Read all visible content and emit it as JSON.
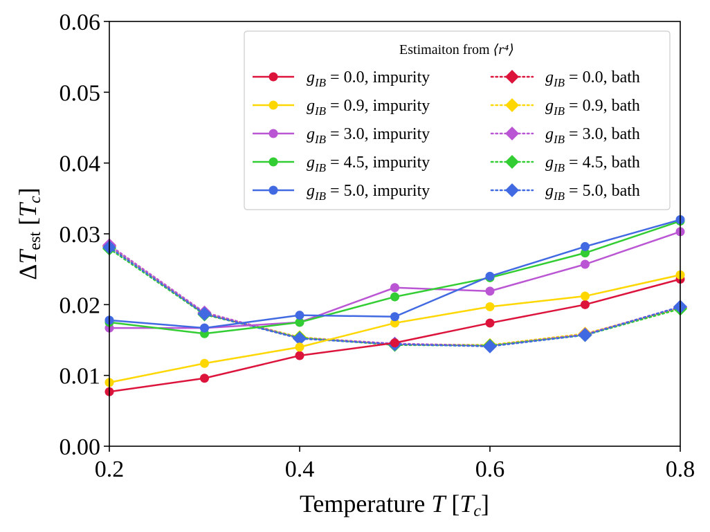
{
  "chart_data": {
    "type": "line",
    "title": "",
    "xlabel": "Temperature T [T_c]",
    "ylabel": "ΔT_est [T_c]",
    "xlim": [
      0.2,
      0.8
    ],
    "ylim": [
      0.0,
      0.06
    ],
    "xticks": [
      "0.2",
      "0.4",
      "0.6",
      "0.8"
    ],
    "yticks": [
      "0.00",
      "0.01",
      "0.02",
      "0.03",
      "0.04",
      "0.05",
      "0.06"
    ],
    "x": [
      0.2,
      0.3,
      0.4,
      0.5,
      0.6,
      0.7,
      0.8
    ],
    "legend": {
      "title_prefix": "Estimaiton from",
      "title_math": "⟨r⁴⟩",
      "location": "upper-right",
      "columns": 2
    },
    "series": [
      {
        "name": "g_IB = 0.0, impurity",
        "g": "0.0",
        "kind": "impurity",
        "color": "#dc143c",
        "style": "solid",
        "marker": "circle",
        "values": [
          0.0077,
          0.0096,
          0.0128,
          0.0146,
          0.0174,
          0.02,
          0.0236
        ]
      },
      {
        "name": "g_IB = 0.9, impurity",
        "g": "0.9",
        "kind": "impurity",
        "color": "#ffd700",
        "style": "solid",
        "marker": "circle",
        "values": [
          0.009,
          0.0117,
          0.014,
          0.0174,
          0.0197,
          0.0212,
          0.0242
        ]
      },
      {
        "name": "g_IB = 3.0, impurity",
        "g": "3.0",
        "kind": "impurity",
        "color": "#ba55d3",
        "style": "solid",
        "marker": "circle",
        "values": [
          0.0167,
          0.0167,
          0.0175,
          0.0224,
          0.0219,
          0.0257,
          0.0303
        ]
      },
      {
        "name": "g_IB = 4.5, impurity",
        "g": "4.5",
        "kind": "impurity",
        "color": "#32cd32",
        "style": "solid",
        "marker": "circle",
        "values": [
          0.0175,
          0.0159,
          0.0175,
          0.0211,
          0.0238,
          0.0273,
          0.0318
        ]
      },
      {
        "name": "g_IB = 5.0, impurity",
        "g": "5.0",
        "kind": "impurity",
        "color": "#4169e1",
        "style": "solid",
        "marker": "circle",
        "values": [
          0.0178,
          0.0167,
          0.0185,
          0.0183,
          0.024,
          0.0282,
          0.032
        ]
      },
      {
        "name": "g_IB = 0.0, bath",
        "g": "0.0",
        "kind": "bath",
        "color": "#dc143c",
        "style": "dotted",
        "marker": "diamond",
        "values": [
          0.0283,
          0.0187,
          0.0153,
          0.0144,
          0.0142,
          0.0158,
          0.0196
        ]
      },
      {
        "name": "g_IB = 0.9, bath",
        "g": "0.9",
        "kind": "bath",
        "color": "#ffd700",
        "style": "dotted",
        "marker": "diamond",
        "values": [
          0.0282,
          0.0188,
          0.0154,
          0.0144,
          0.0143,
          0.0159,
          0.0195
        ]
      },
      {
        "name": "g_IB = 3.0, bath",
        "g": "3.0",
        "kind": "bath",
        "color": "#ba55d3",
        "style": "dotted",
        "marker": "diamond",
        "values": [
          0.0284,
          0.0189,
          0.0153,
          0.0145,
          0.0142,
          0.0158,
          0.0197
        ]
      },
      {
        "name": "g_IB = 4.5, bath",
        "g": "4.5",
        "kind": "bath",
        "color": "#32cd32",
        "style": "dotted",
        "marker": "diamond",
        "values": [
          0.0279,
          0.0186,
          0.0153,
          0.0143,
          0.0142,
          0.0157,
          0.0194
        ]
      },
      {
        "name": "g_IB = 5.0, bath",
        "g": "5.0",
        "kind": "bath",
        "color": "#4169e1",
        "style": "dotted",
        "marker": "diamond",
        "values": [
          0.0281,
          0.0187,
          0.0152,
          0.0144,
          0.0141,
          0.0157,
          0.0197
        ]
      }
    ],
    "labels": {
      "g_symbol": "g",
      "g_sub": "IB",
      "equals": " = ",
      "impurity_suffix": ", impurity",
      "bath_suffix": ", bath",
      "x_word": "Temperature ",
      "x_var": "T",
      "x_unit_open": " [",
      "x_unit_var": "T",
      "x_unit_sub": "c",
      "x_unit_close": "]",
      "y_delta": "Δ",
      "y_var": "T",
      "y_sub": "est",
      "y_unit_open": " [",
      "y_unit_var": "T",
      "y_unit_sub": "c",
      "y_unit_close": "]"
    }
  }
}
